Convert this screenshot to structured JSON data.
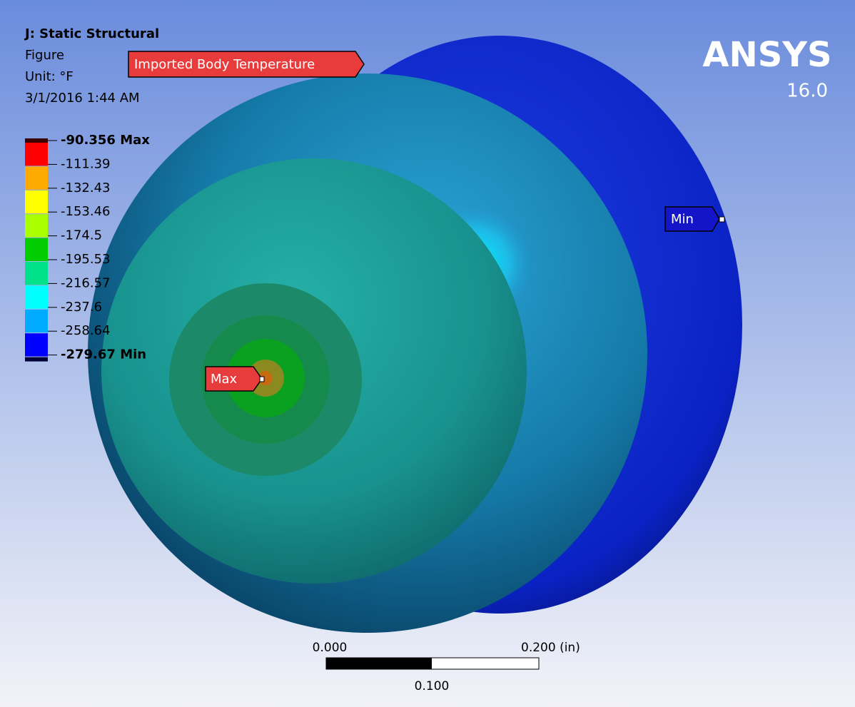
{
  "header": {
    "title": "J: Static Structural",
    "lines": [
      "Figure",
      "Unit: °F",
      "3/1/2016 1:44 AM"
    ]
  },
  "legend": {
    "labels": [
      "-90.356 Max",
      "-111.39",
      "-132.43",
      "-153.46",
      "-174.5",
      "-195.53",
      "-216.57",
      "-237.6",
      "-258.64",
      "-279.67 Min"
    ]
  },
  "tags": {
    "result": "Imported Body Temperature",
    "max": "Max",
    "min": "Min"
  },
  "logo": {
    "name": "ANSYS",
    "version": "16.0"
  },
  "scale_bar": {
    "left": "0.000",
    "right": "0.200 (in)",
    "middle": "0.100"
  }
}
